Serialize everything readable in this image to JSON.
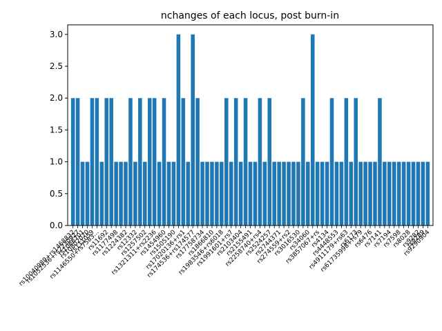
{
  "chart_data": {
    "type": "bar",
    "title": "nchanges of each locus, post burn-in",
    "xlabel": "",
    "ylabel": "",
    "ylim": [
      0,
      3.15
    ],
    "yticks": [
      0.0,
      0.5,
      1.0,
      1.5,
      2.0,
      2.5,
      3.0
    ],
    "ytick_labels": [
      "0.0",
      "0.5",
      "1.0",
      "1.5",
      "2.0",
      "2.5",
      "3.0"
    ],
    "bar_color": "#1f77b4",
    "grid": false,
    "legend": "none",
    "values": [
      2,
      2,
      1,
      1,
      2,
      2,
      1,
      2,
      2,
      1,
      1,
      1,
      2,
      1,
      2,
      1,
      2,
      2,
      1,
      2,
      1,
      1,
      3,
      2,
      1,
      3,
      2,
      1,
      1,
      1,
      1,
      1,
      2,
      1,
      2,
      1,
      2,
      1,
      1,
      2,
      1,
      2,
      1,
      1,
      1,
      1,
      1,
      1,
      2,
      1,
      3,
      1,
      1,
      1,
      2,
      1,
      1,
      2,
      1,
      2,
      1,
      1,
      1,
      1,
      2,
      1,
      1,
      1,
      1,
      1,
      1,
      1,
      1,
      1,
      1
    ],
    "visible_x_labels": [
      {
        "index": 0,
        "text": "rs10040989+rs1468832"
      },
      {
        "index": 1,
        "text": "rs1052536+rs2230927"
      },
      {
        "index": 2,
        "text": "rs1066701"
      },
      {
        "index": 3,
        "text": "rs10802070"
      },
      {
        "index": 4,
        "text": "rs111059"
      },
      {
        "index": 5,
        "text": "rs1146550+rs7583..."
      },
      {
        "index": 7,
        "text": "rs11692"
      },
      {
        "index": 9,
        "text": "rs1177498"
      },
      {
        "index": 11,
        "text": "rs1224382"
      },
      {
        "index": 13,
        "text": "rs12332"
      },
      {
        "index": 15,
        "text": "rs1257502"
      },
      {
        "index": 17,
        "text": "rs1321311+rs2236"
      },
      {
        "index": 19,
        "text": "rs1454960"
      },
      {
        "index": 21,
        "text": "rs1505190"
      },
      {
        "index": 23,
        "text": "rs17020136+rs1"
      },
      {
        "index": 25,
        "text": "rs174536+rs174577"
      },
      {
        "index": 27,
        "text": "rs17758734"
      },
      {
        "index": 29,
        "text": "rs1866810"
      },
      {
        "index": 31,
        "text": "rs1983546+rs6018"
      },
      {
        "index": 33,
        "text": "rs1991601+rs7"
      },
      {
        "index": 35,
        "text": "rs2103404"
      },
      {
        "index": 37,
        "text": "rs2155491"
      },
      {
        "index": 39,
        "text": "rs2258740+rs4"
      },
      {
        "index": 41,
        "text": "rs2524257"
      },
      {
        "index": 43,
        "text": "rs2744371"
      },
      {
        "index": 45,
        "text": "rs274559+rs2"
      },
      {
        "index": 47,
        "text": "rs3016530"
      },
      {
        "index": 49,
        "text": "rs34060"
      },
      {
        "index": 51,
        "text": "rs3857067+rs"
      },
      {
        "index": 53,
        "text": "rs4134"
      },
      {
        "index": 55,
        "text": "rs4448553"
      },
      {
        "index": 57,
        "text": "rs4911179+rs63"
      },
      {
        "index": 59,
        "text": "rs6173"
      },
      {
        "index": 60,
        "text": "rs61735998+rs79"
      },
      {
        "index": 62,
        "text": "rs6476"
      },
      {
        "index": 64,
        "text": "rs7141"
      },
      {
        "index": 66,
        "text": "rs7194"
      },
      {
        "index": 68,
        "text": "rs7598"
      },
      {
        "index": 70,
        "text": "rs8028"
      },
      {
        "index": 72,
        "text": "rs9282"
      },
      {
        "index": 73,
        "text": "rs9289"
      },
      {
        "index": 74,
        "text": "rs9290904"
      }
    ]
  }
}
